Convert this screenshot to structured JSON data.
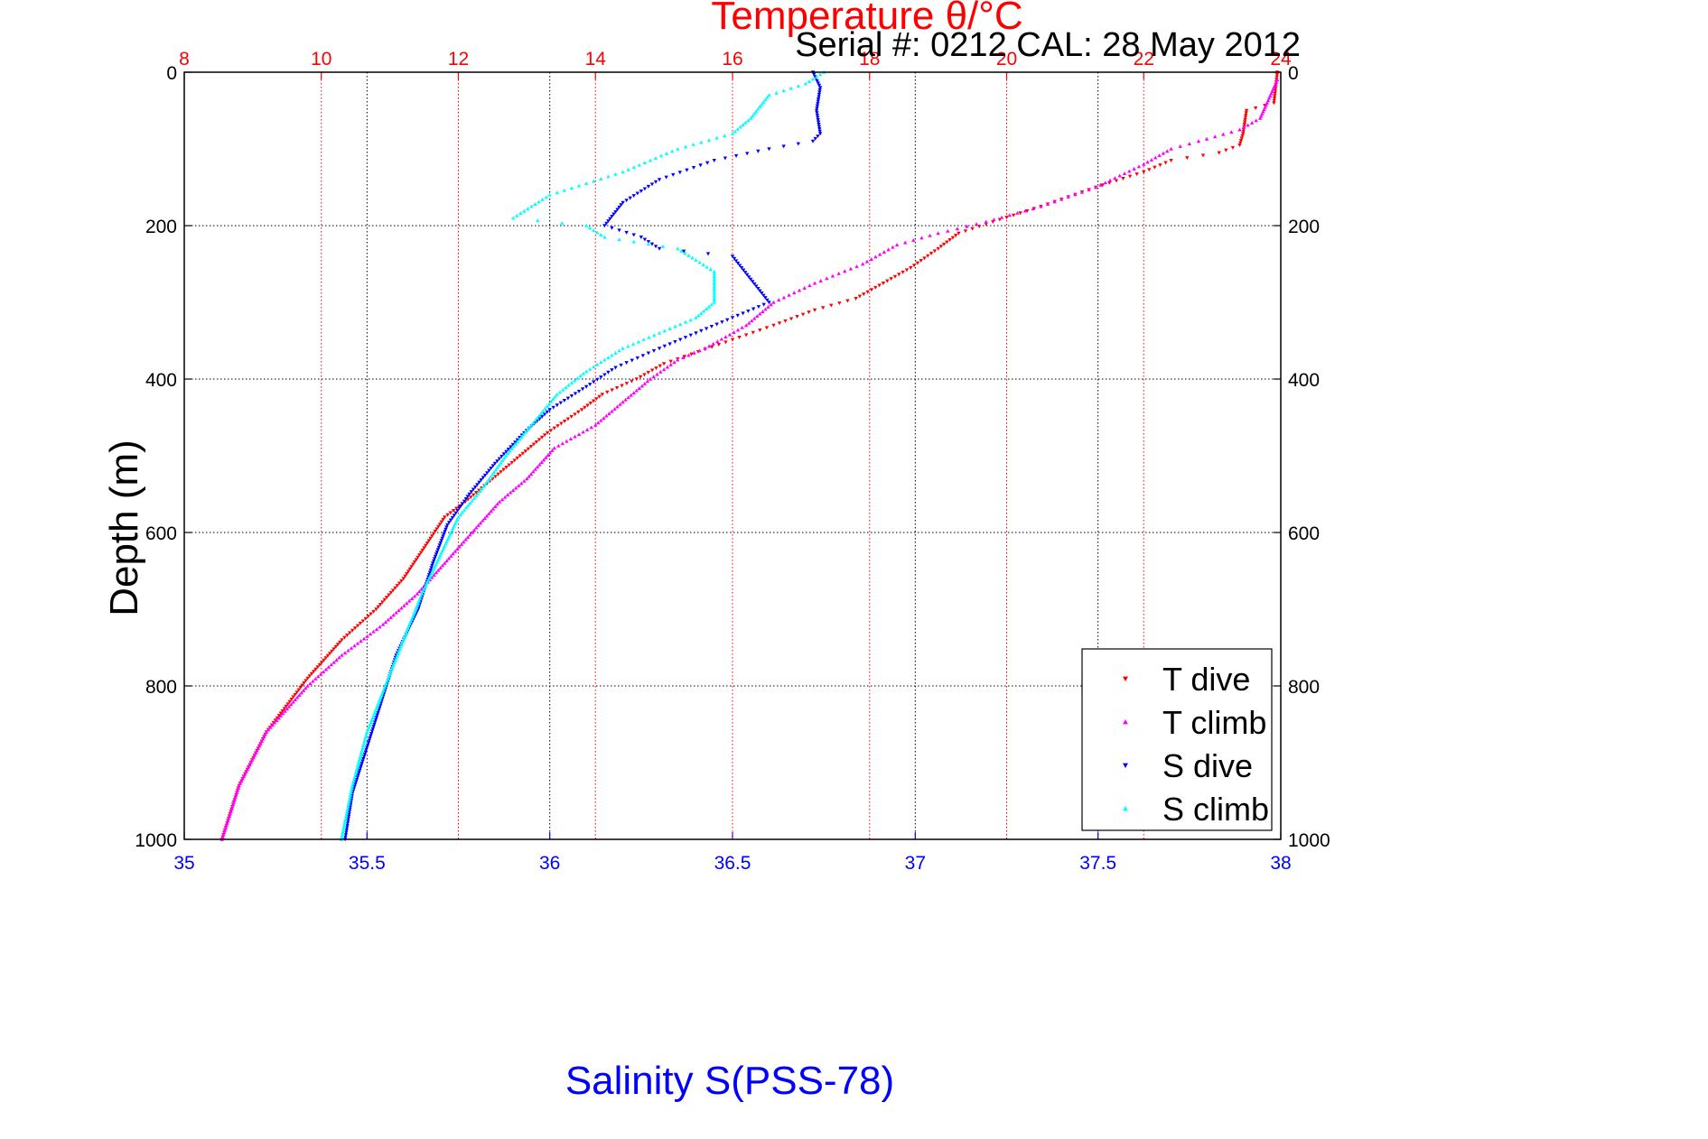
{
  "chart_data": {
    "type": "scatter",
    "title": "Serial #: 0212  CAL: 28 May 2012",
    "xlabel_bottom": "Salinity S(PSS-78)",
    "xlabel_top": "Temperature θ/°C",
    "ylabel": "Depth (m)",
    "ylim": [
      0,
      1000
    ],
    "y_reversed": true,
    "xlim_salinity": [
      35,
      38
    ],
    "xlim_temperature": [
      8,
      24
    ],
    "yticks": [
      "0",
      "200",
      "400",
      "600",
      "800",
      "1000"
    ],
    "xticks_bottom": [
      "35",
      "35.5",
      "36",
      "36.5",
      "37",
      "37.5",
      "38"
    ],
    "xticks_top": [
      "8",
      "10",
      "12",
      "14",
      "16",
      "18",
      "20",
      "22",
      "24"
    ],
    "grid": true,
    "legend_position": "bottom-right",
    "colors": {
      "salinity_axis": "#0000ff",
      "temperature_axis": "#ff0000",
      "grid": "#000000",
      "temp_grid": "#ff0000"
    },
    "series": [
      {
        "name": "T dive",
        "axis": "temperature",
        "color": "#ff0000",
        "marker": "triangle-down",
        "points": [
          [
            23.95,
            0
          ],
          [
            23.9,
            40
          ],
          [
            23.5,
            50
          ],
          [
            23.45,
            80
          ],
          [
            23.4,
            95
          ],
          [
            23.1,
            105
          ],
          [
            22.4,
            115
          ],
          [
            22.0,
            130
          ],
          [
            21.3,
            150
          ],
          [
            20.5,
            175
          ],
          [
            19.8,
            195
          ],
          [
            19.3,
            210
          ],
          [
            19.0,
            230
          ],
          [
            18.6,
            255
          ],
          [
            18.2,
            275
          ],
          [
            17.8,
            295
          ],
          [
            17.2,
            310
          ],
          [
            16.6,
            330
          ],
          [
            15.8,
            355
          ],
          [
            15.0,
            380
          ],
          [
            14.6,
            400
          ],
          [
            14.1,
            420
          ],
          [
            13.8,
            440
          ],
          [
            13.3,
            470
          ],
          [
            12.9,
            500
          ],
          [
            12.5,
            530
          ],
          [
            12.1,
            560
          ],
          [
            11.8,
            580
          ],
          [
            11.5,
            620
          ],
          [
            11.2,
            660
          ],
          [
            10.8,
            700
          ],
          [
            10.3,
            740
          ],
          [
            9.8,
            790
          ],
          [
            9.2,
            860
          ],
          [
            8.8,
            930
          ],
          [
            8.55,
            1000
          ]
        ]
      },
      {
        "name": "T climb",
        "axis": "temperature",
        "color": "#ff00ff",
        "marker": "triangle-up",
        "points": [
          [
            23.95,
            10
          ],
          [
            23.8,
            40
          ],
          [
            23.7,
            60
          ],
          [
            23.4,
            75
          ],
          [
            22.8,
            90
          ],
          [
            22.4,
            100
          ],
          [
            22.0,
            120
          ],
          [
            21.3,
            150
          ],
          [
            20.5,
            175
          ],
          [
            19.7,
            195
          ],
          [
            19.0,
            210
          ],
          [
            18.4,
            225
          ],
          [
            17.9,
            250
          ],
          [
            17.2,
            275
          ],
          [
            16.6,
            300
          ],
          [
            16.2,
            330
          ],
          [
            15.6,
            360
          ],
          [
            15.2,
            375
          ],
          [
            14.8,
            400
          ],
          [
            14.4,
            430
          ],
          [
            14.0,
            460
          ],
          [
            13.4,
            490
          ],
          [
            13.0,
            530
          ],
          [
            12.6,
            560
          ],
          [
            12.2,
            600
          ],
          [
            11.8,
            640
          ],
          [
            11.4,
            680
          ],
          [
            10.9,
            720
          ],
          [
            10.3,
            760
          ],
          [
            9.8,
            800
          ],
          [
            9.2,
            860
          ],
          [
            8.8,
            930
          ],
          [
            8.55,
            1000
          ]
        ]
      },
      {
        "name": "S dive",
        "axis": "salinity",
        "color": "#0000ff",
        "marker": "triangle-down",
        "points": [
          [
            36.72,
            0
          ],
          [
            36.74,
            20
          ],
          [
            36.73,
            50
          ],
          [
            36.74,
            80
          ],
          [
            36.72,
            90
          ],
          [
            36.6,
            100
          ],
          [
            36.45,
            115
          ],
          [
            36.3,
            140
          ],
          [
            36.2,
            170
          ],
          [
            36.15,
            200
          ],
          [
            36.25,
            215
          ],
          [
            36.3,
            230
          ],
          [
            36.5,
            240
          ],
          [
            36.55,
            270
          ],
          [
            36.6,
            300
          ],
          [
            36.5,
            320
          ],
          [
            36.4,
            340
          ],
          [
            36.3,
            360
          ],
          [
            36.18,
            385
          ],
          [
            36.1,
            410
          ],
          [
            36.0,
            440
          ],
          [
            35.93,
            470
          ],
          [
            35.85,
            510
          ],
          [
            35.78,
            550
          ],
          [
            35.72,
            590
          ],
          [
            35.68,
            640
          ],
          [
            35.64,
            700
          ],
          [
            35.58,
            760
          ],
          [
            35.54,
            820
          ],
          [
            35.5,
            880
          ],
          [
            35.46,
            940
          ],
          [
            35.44,
            1000
          ]
        ]
      },
      {
        "name": "S climb",
        "axis": "salinity",
        "color": "#00ffff",
        "marker": "triangle-up",
        "points": [
          [
            36.75,
            0
          ],
          [
            36.7,
            15
          ],
          [
            36.6,
            30
          ],
          [
            36.55,
            60
          ],
          [
            36.5,
            80
          ],
          [
            36.35,
            100
          ],
          [
            36.2,
            130
          ],
          [
            36.0,
            160
          ],
          [
            35.9,
            190
          ],
          [
            36.1,
            200
          ],
          [
            36.15,
            215
          ],
          [
            36.35,
            230
          ],
          [
            36.45,
            260
          ],
          [
            36.45,
            300
          ],
          [
            36.4,
            320
          ],
          [
            36.3,
            340
          ],
          [
            36.2,
            360
          ],
          [
            36.1,
            390
          ],
          [
            36.02,
            420
          ],
          [
            35.95,
            460
          ],
          [
            35.88,
            500
          ],
          [
            35.82,
            540
          ],
          [
            35.75,
            580
          ],
          [
            35.7,
            630
          ],
          [
            35.65,
            680
          ],
          [
            35.6,
            740
          ],
          [
            35.55,
            800
          ],
          [
            35.5,
            860
          ],
          [
            35.46,
            930
          ],
          [
            35.43,
            1000
          ]
        ]
      }
    ]
  }
}
